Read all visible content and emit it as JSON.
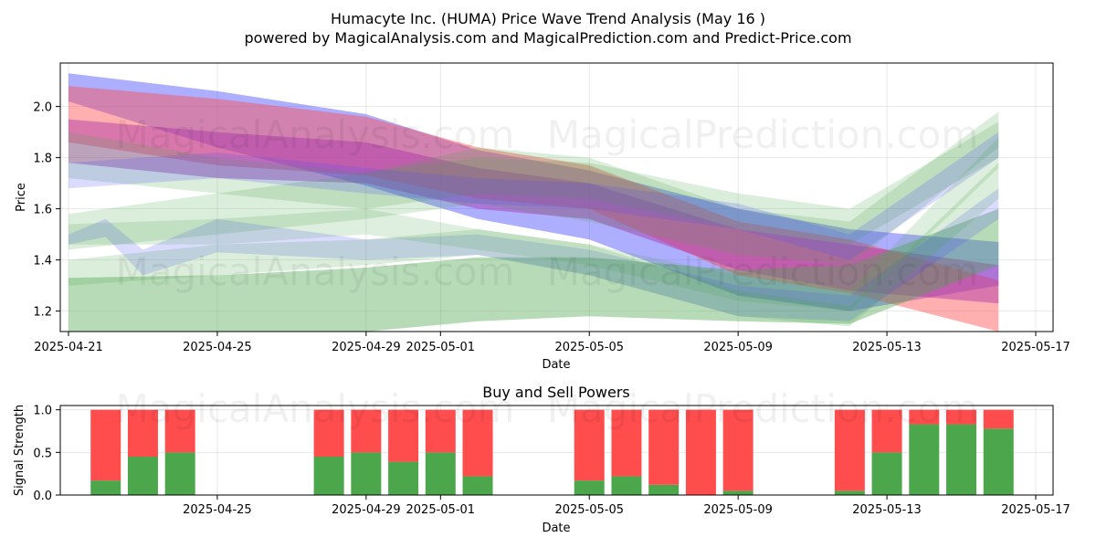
{
  "figure": {
    "title_line1": "Humacyte Inc. (HUMA) Price Wave Trend Analysis (May 16 )",
    "title_line2": "powered by MagicalAnalysis.com and MagicalPrediction.com and Predict-Price.com",
    "watermark_1": "MagicalAnalysis.com",
    "watermark_2": "MagicalPrediction.com"
  },
  "chart_data": [
    {
      "type": "area",
      "xlabel": "Date",
      "ylabel": "Price",
      "ylim": [
        1.12,
        2.17
      ],
      "xlim": [
        "2025-04-21",
        "2025-05-17"
      ],
      "x_ticks": [
        "2025-04-21",
        "2025-04-25",
        "2025-04-29",
        "2025-05-01",
        "2025-05-05",
        "2025-05-09",
        "2025-05-13",
        "2025-05-17"
      ],
      "y_ticks": [
        1.2,
        1.4,
        1.6,
        1.8,
        2.0
      ],
      "grid": true,
      "colors": {
        "blue": "#4b4bff",
        "red": "#ff4d4d",
        "green": "#4ca64c",
        "purple": "#aa33aa"
      },
      "series": [
        {
          "color": "blue",
          "opacity": 0.45,
          "x": [
            "2025-04-21",
            "2025-04-25",
            "2025-04-29",
            "2025-05-02",
            "2025-05-05",
            "2025-05-09",
            "2025-05-12",
            "2025-05-16"
          ],
          "upper": [
            2.13,
            2.06,
            1.97,
            1.83,
            1.75,
            1.6,
            1.52,
            1.47
          ],
          "lower": [
            2.02,
            1.84,
            1.69,
            1.56,
            1.48,
            1.26,
            1.2,
            1.3
          ]
        },
        {
          "color": "red",
          "opacity": 0.45,
          "x": [
            "2025-04-21",
            "2025-04-25",
            "2025-04-29",
            "2025-05-02",
            "2025-05-05",
            "2025-05-09",
            "2025-05-12",
            "2025-05-16"
          ],
          "upper": [
            2.08,
            2.03,
            1.96,
            1.84,
            1.77,
            1.55,
            1.48,
            1.32
          ],
          "lower": [
            1.86,
            1.77,
            1.73,
            1.64,
            1.6,
            1.34,
            1.27,
            1.12
          ]
        },
        {
          "color": "purple",
          "opacity": 0.45,
          "x": [
            "2025-04-21",
            "2025-04-25",
            "2025-04-29",
            "2025-05-02",
            "2025-05-05",
            "2025-05-09",
            "2025-05-12",
            "2025-05-16"
          ],
          "upper": [
            1.95,
            1.9,
            1.86,
            1.76,
            1.7,
            1.52,
            1.46,
            1.38
          ],
          "lower": [
            1.78,
            1.72,
            1.7,
            1.6,
            1.56,
            1.36,
            1.28,
            1.23
          ]
        },
        {
          "color": "green",
          "opacity": 0.4,
          "x": [
            "2025-04-21",
            "2025-04-25",
            "2025-04-29",
            "2025-05-02",
            "2025-05-05",
            "2025-05-09",
            "2025-05-12",
            "2025-05-16"
          ],
          "upper": [
            1.33,
            1.34,
            1.37,
            1.41,
            1.41,
            1.36,
            1.38,
            1.6
          ],
          "lower": [
            1.12,
            1.12,
            1.12,
            1.16,
            1.18,
            1.16,
            1.15,
            1.38
          ]
        },
        {
          "color": "green",
          "opacity": 0.2,
          "x": [
            "2025-04-21",
            "2025-04-25",
            "2025-04-29",
            "2025-05-02",
            "2025-05-05",
            "2025-05-09",
            "2025-05-12",
            "2025-05-16"
          ],
          "upper": [
            1.58,
            1.66,
            1.74,
            1.84,
            1.8,
            1.6,
            1.55,
            1.98
          ],
          "lower": [
            1.44,
            1.5,
            1.56,
            1.62,
            1.55,
            1.42,
            1.38,
            1.84
          ]
        },
        {
          "color": "blue",
          "opacity": 0.2,
          "x": [
            "2025-04-21",
            "2025-04-22",
            "2025-04-23",
            "2025-04-25",
            "2025-04-29",
            "2025-05-02",
            "2025-05-05",
            "2025-05-09",
            "2025-05-12",
            "2025-05-16"
          ],
          "upper": [
            1.5,
            1.56,
            1.44,
            1.56,
            1.48,
            1.5,
            1.44,
            1.3,
            1.26,
            1.68
          ],
          "lower": [
            1.46,
            1.49,
            1.34,
            1.43,
            1.4,
            1.42,
            1.34,
            1.18,
            1.16,
            1.56
          ]
        },
        {
          "color": "green",
          "opacity": 0.2,
          "x": [
            "2025-04-21",
            "2025-04-25",
            "2025-04-29",
            "2025-05-02",
            "2025-05-05",
            "2025-05-09",
            "2025-05-12",
            "2025-05-16"
          ],
          "upper": [
            1.9,
            1.8,
            1.74,
            1.8,
            1.78,
            1.66,
            1.6,
            1.94
          ],
          "lower": [
            1.72,
            1.66,
            1.6,
            1.66,
            1.64,
            1.52,
            1.46,
            1.8
          ]
        },
        {
          "color": "green",
          "opacity": 0.2,
          "x": [
            "2025-04-21",
            "2025-04-25",
            "2025-04-29",
            "2025-05-02",
            "2025-05-05",
            "2025-05-09",
            "2025-05-12",
            "2025-05-16"
          ],
          "upper": [
            1.4,
            1.46,
            1.48,
            1.52,
            1.46,
            1.28,
            1.22,
            1.78
          ],
          "lower": [
            1.3,
            1.34,
            1.38,
            1.42,
            1.34,
            1.18,
            1.14,
            1.64
          ]
        },
        {
          "color": "blue",
          "opacity": 0.2,
          "x": [
            "2025-04-21",
            "2025-04-25",
            "2025-04-29",
            "2025-05-02",
            "2025-05-05",
            "2025-05-09",
            "2025-05-12",
            "2025-05-16"
          ],
          "upper": [
            1.78,
            1.82,
            1.76,
            1.72,
            1.7,
            1.62,
            1.5,
            1.9
          ],
          "lower": [
            1.68,
            1.72,
            1.66,
            1.62,
            1.6,
            1.52,
            1.4,
            1.8
          ]
        },
        {
          "color": "green",
          "opacity": 0.18,
          "x": [
            "2025-04-21",
            "2025-04-25",
            "2025-04-29",
            "2025-05-02",
            "2025-05-05",
            "2025-05-09",
            "2025-05-12",
            "2025-05-16"
          ],
          "upper": [
            1.54,
            1.56,
            1.6,
            1.52,
            1.46,
            1.34,
            1.28,
            1.88
          ],
          "lower": [
            1.46,
            1.46,
            1.5,
            1.44,
            1.38,
            1.24,
            1.2,
            1.76
          ]
        }
      ]
    },
    {
      "type": "bar",
      "title": "Buy and Sell Powers",
      "xlabel": "Date",
      "ylabel": "Signal Strength",
      "ylim": [
        0,
        1.05
      ],
      "y_ticks": [
        0.0,
        0.5,
        1.0
      ],
      "x_ticks": [
        "2025-04-25",
        "2025-04-29",
        "2025-05-01",
        "2025-05-05",
        "2025-05-09",
        "2025-05-13",
        "2025-05-17"
      ],
      "grid": true,
      "colors": {
        "buy": "#4ca64c",
        "sell": "#ff4d4d"
      },
      "categories": [
        "2025-04-22",
        "2025-04-23",
        "2025-04-24",
        "2025-04-28",
        "2025-04-29",
        "2025-04-30",
        "2025-05-01",
        "2025-05-02",
        "2025-05-05",
        "2025-05-06",
        "2025-05-07",
        "2025-05-08",
        "2025-05-09",
        "2025-05-12",
        "2025-05-13",
        "2025-05-14",
        "2025-05-15",
        "2025-05-16"
      ],
      "buy": [
        0.17,
        0.45,
        0.5,
        0.45,
        0.5,
        0.39,
        0.5,
        0.22,
        0.17,
        0.22,
        0.12,
        0.0,
        0.05,
        0.05,
        0.5,
        0.83,
        0.83,
        0.78
      ],
      "sell": [
        0.83,
        0.55,
        0.5,
        0.55,
        0.5,
        0.61,
        0.5,
        0.78,
        0.83,
        0.78,
        0.88,
        1.0,
        0.95,
        0.95,
        0.5,
        0.17,
        0.17,
        0.22
      ]
    }
  ]
}
